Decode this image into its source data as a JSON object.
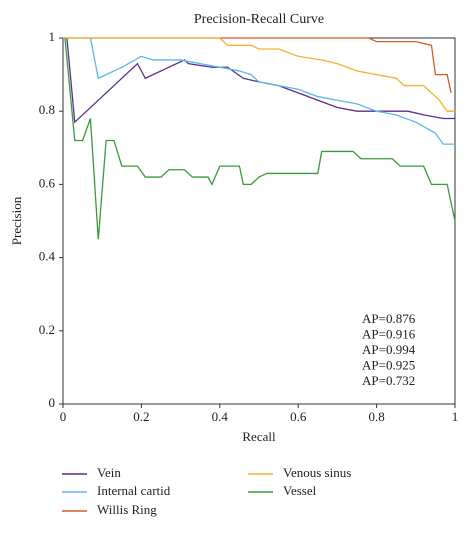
{
  "chart_data": {
    "type": "line",
    "title": "Precision-Recall Curve",
    "x_label": "Recall",
    "y_label": "Precision",
    "xlim": [
      0,
      1
    ],
    "ylim": [
      0,
      1
    ],
    "xticks": [
      0,
      0.2,
      0.4,
      0.6,
      0.8,
      1
    ],
    "yticks": [
      0,
      0.2,
      0.4,
      0.6,
      0.8,
      1
    ],
    "grid": false,
    "annotations": [
      "AP=0.876",
      "AP=0.916",
      "AP=0.994",
      "AP=0.925",
      "AP=0.732"
    ],
    "series": [
      {
        "name": "Vein",
        "color": "#5b2d8a",
        "x": [
          0.01,
          0.03,
          0.19,
          0.21,
          0.25,
          0.31,
          0.32,
          0.38,
          0.42,
          0.46,
          0.5,
          0.55,
          0.6,
          0.65,
          0.7,
          0.75,
          0.8,
          0.88,
          0.92,
          0.97,
          1
        ],
        "values": [
          1,
          0.77,
          0.93,
          0.89,
          0.91,
          0.94,
          0.93,
          0.92,
          0.92,
          0.89,
          0.88,
          0.87,
          0.85,
          0.83,
          0.81,
          0.8,
          0.8,
          0.8,
          0.79,
          0.78,
          0.78
        ]
      },
      {
        "name": "Internal cartid",
        "color": "#5bb8e8",
        "x": [
          0.07,
          0.09,
          0.15,
          0.2,
          0.23,
          0.3,
          0.35,
          0.4,
          0.45,
          0.48,
          0.5,
          0.55,
          0.6,
          0.65,
          0.7,
          0.75,
          0.8,
          0.85,
          0.9,
          0.95,
          0.97,
          1
        ],
        "values": [
          1,
          0.89,
          0.92,
          0.95,
          0.94,
          0.94,
          0.93,
          0.92,
          0.91,
          0.9,
          0.88,
          0.87,
          0.86,
          0.84,
          0.83,
          0.82,
          0.8,
          0.79,
          0.77,
          0.74,
          0.71,
          0.71
        ]
      },
      {
        "name": "Willis Ring",
        "color": "#d9582b",
        "x": [
          0,
          0.78,
          0.8,
          0.9,
          0.94,
          0.95,
          0.98,
          0.99
        ],
        "values": [
          1,
          1,
          0.99,
          0.99,
          0.98,
          0.9,
          0.9,
          0.85
        ]
      },
      {
        "name": "Venous sinus",
        "color": "#f2b233",
        "x": [
          0,
          0.4,
          0.42,
          0.48,
          0.5,
          0.55,
          0.6,
          0.66,
          0.7,
          0.75,
          0.8,
          0.85,
          0.87,
          0.92,
          0.96,
          0.98,
          1
        ],
        "values": [
          1,
          1,
          0.98,
          0.98,
          0.97,
          0.97,
          0.95,
          0.94,
          0.93,
          0.91,
          0.9,
          0.89,
          0.87,
          0.87,
          0.83,
          0.8,
          0.8
        ]
      },
      {
        "name": "Vessel",
        "color": "#3a9a3a",
        "x": [
          0.005,
          0.03,
          0.05,
          0.07,
          0.09,
          0.11,
          0.13,
          0.15,
          0.19,
          0.21,
          0.25,
          0.27,
          0.31,
          0.33,
          0.37,
          0.38,
          0.4,
          0.45,
          0.46,
          0.48,
          0.5,
          0.52,
          0.65,
          0.66,
          0.74,
          0.76,
          0.84,
          0.86,
          0.92,
          0.94,
          0.98,
          1
        ],
        "values": [
          1,
          0.72,
          0.72,
          0.78,
          0.45,
          0.72,
          0.72,
          0.65,
          0.65,
          0.62,
          0.62,
          0.64,
          0.64,
          0.62,
          0.62,
          0.6,
          0.65,
          0.65,
          0.6,
          0.6,
          0.62,
          0.63,
          0.63,
          0.69,
          0.69,
          0.67,
          0.67,
          0.65,
          0.65,
          0.6,
          0.6,
          0.5
        ]
      }
    ]
  }
}
